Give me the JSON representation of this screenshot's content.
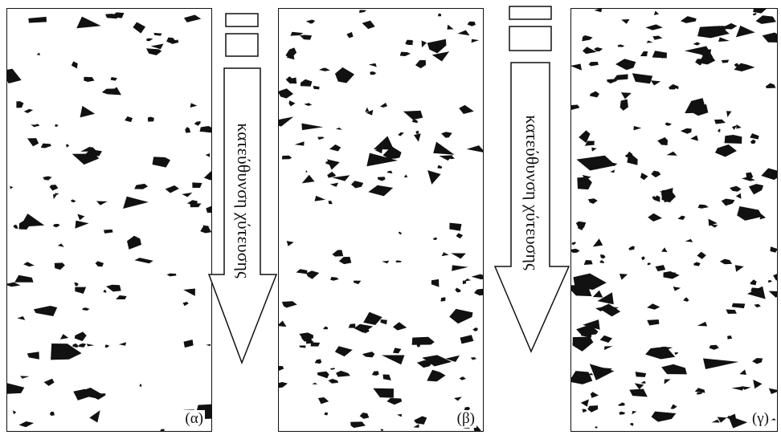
{
  "panels": [
    {
      "label": "(α)"
    },
    {
      "label": "(β)"
    },
    {
      "label": "(γ)"
    }
  ],
  "arrows": [
    {
      "text": "κατεύθυνση χύτευσης"
    },
    {
      "text": "κατεύθυνση χύτευσης"
    }
  ],
  "colors": {
    "particle": "#111111",
    "background": "#ffffff",
    "outline": "#111111"
  }
}
